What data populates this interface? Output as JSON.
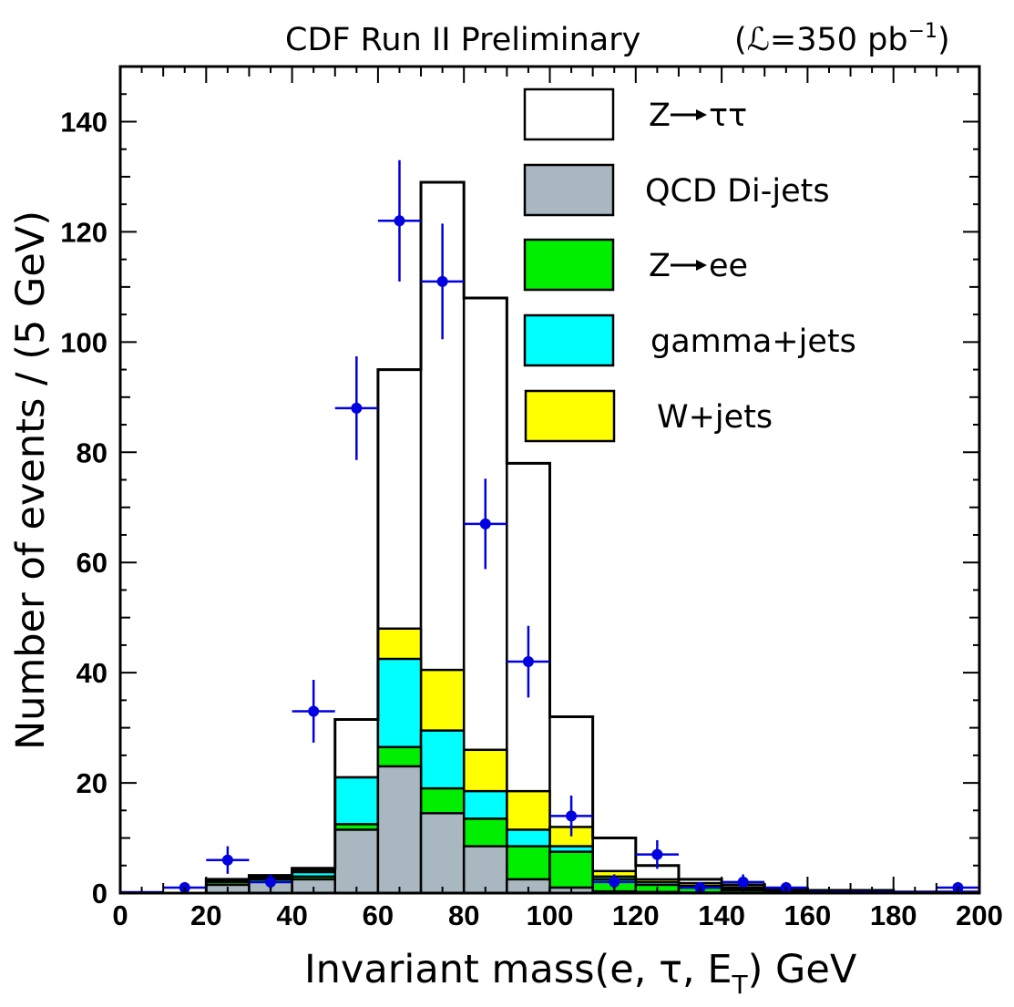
{
  "chart_data": {
    "type": "bar",
    "title": "CDF Run II Preliminary",
    "luminosity_label": {
      "prefix": "(",
      "symbol": "ℒ",
      "value": "=350 pb",
      "sup": "−1",
      "suffix": ")"
    },
    "xlabel": {
      "main": "Invariant mass(e, τ, E",
      "sub": "T",
      "tail": ")  GeV"
    },
    "ylabel": "Number of events / (5 GeV)",
    "xlim": [
      0,
      200
    ],
    "ylim": [
      0,
      150
    ],
    "xticks": [
      "0",
      "20",
      "40",
      "60",
      "80",
      "100",
      "120",
      "140",
      "160",
      "180",
      "200"
    ],
    "yticks": [
      "0",
      "20",
      "40",
      "60",
      "80",
      "100",
      "120",
      "140"
    ],
    "bin_edges": [
      10,
      20,
      30,
      40,
      50,
      60,
      70,
      80,
      90,
      100,
      110,
      120,
      130,
      140,
      150,
      160,
      180,
      200
    ],
    "stack_note": "cumulative stacked totals, bottom to top",
    "series": [
      {
        "name": "QCD Di-jets",
        "color": "#a9b8c0",
        "values": [
          0,
          1.5,
          2,
          2.5,
          11.5,
          23,
          14.5,
          8.5,
          2.5,
          1,
          0.3,
          0.2,
          0.1,
          0,
          0,
          0,
          0
        ]
      },
      {
        "name": "Z→ee",
        "color": "#00ee00",
        "values": [
          0,
          2,
          2.5,
          3,
          12.5,
          26.5,
          19,
          13.5,
          8.5,
          7.5,
          2.5,
          1.5,
          1,
          0.5,
          0.2,
          0.1,
          0
        ]
      },
      {
        "name": "gamma+jets",
        "color": "#00ffff",
        "values": [
          0,
          2,
          2.8,
          3.8,
          21,
          42.5,
          29.5,
          18.5,
          11.5,
          8.5,
          3,
          2,
          1.3,
          0.7,
          0.3,
          0.1,
          0
        ]
      },
      {
        "name": "W+jets",
        "color": "#ffff00",
        "values": [
          0,
          2.2,
          3,
          4.2,
          21,
          48,
          40.5,
          26,
          18.5,
          12,
          4,
          2.5,
          1.8,
          1,
          0.5,
          0.2,
          0.1
        ]
      },
      {
        "name": "Z→ττ",
        "color": "#ffffff",
        "values": [
          0,
          2.5,
          3.2,
          4.5,
          31.5,
          95,
          129,
          108,
          78,
          32,
          10,
          5,
          2.5,
          1.5,
          0.8,
          0.5,
          0.2
        ]
      }
    ],
    "data_points": {
      "x": [
        15,
        25,
        35,
        45,
        55,
        65,
        75,
        85,
        95,
        105,
        115,
        125,
        135,
        145,
        155,
        195
      ],
      "y": [
        1,
        6,
        2,
        33,
        88,
        122,
        111,
        67,
        42,
        14,
        2,
        7,
        1,
        2,
        1,
        1
      ],
      "err": [
        1,
        2.5,
        1.4,
        5.7,
        9.4,
        11,
        10.5,
        8.2,
        6.5,
        3.7,
        1.4,
        2.6,
        1,
        1.4,
        1,
        1
      ],
      "color": "#0000e0"
    },
    "legend": [
      {
        "label": "Z",
        "suffix": "ττ",
        "arrow": true,
        "color": "#ffffff"
      },
      {
        "label": "QCD Di-jets",
        "suffix": "",
        "arrow": false,
        "color": "#a9b8c0"
      },
      {
        "label": "Z",
        "suffix": "ee",
        "arrow": true,
        "color": "#00ee00"
      },
      {
        "label": "gamma+jets",
        "suffix": "",
        "arrow": false,
        "color": "#00ffff"
      },
      {
        "label": "W+jets",
        "suffix": "",
        "arrow": false,
        "color": "#ffff00"
      }
    ],
    "legend_position": "top-right"
  }
}
